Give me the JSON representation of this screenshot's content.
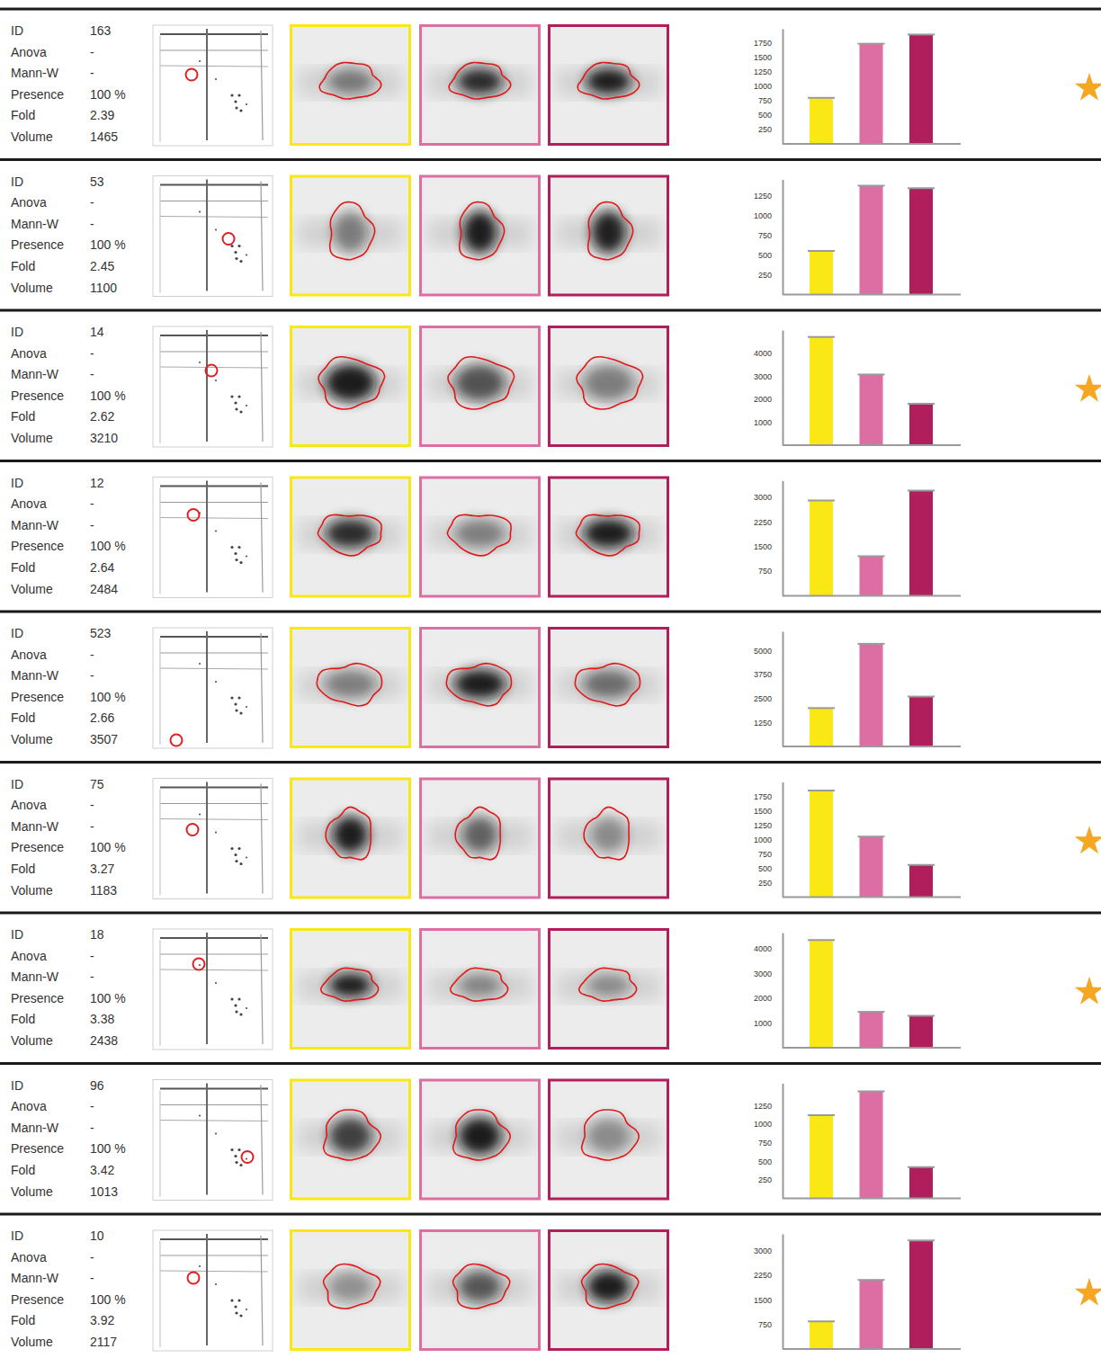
{
  "chart_data": [
    {
      "type": "bar",
      "categories": [
        null,
        null,
        null
      ],
      "values": [
        800,
        1740,
        1900
      ],
      "colors": [
        "#f9e814",
        "#dc6ea4",
        "#b01e5c"
      ],
      "ylim": [
        0,
        2000
      ],
      "yticks": [
        250,
        500,
        750,
        1000,
        1250,
        1500,
        1750
      ],
      "tick_labels": "y"
    },
    {
      "type": "bar",
      "categories": [
        null,
        null,
        null
      ],
      "values": [
        550,
        1370,
        1340
      ],
      "colors": [
        "#f9e814",
        "#dc6ea4",
        "#b01e5c"
      ],
      "ylim": [
        0,
        1450
      ],
      "yticks": [
        250,
        500,
        750,
        1000,
        1250
      ],
      "tick_labels": "y"
    },
    {
      "type": "bar",
      "categories": [
        null,
        null,
        null
      ],
      "values": [
        4700,
        3070,
        1800
      ],
      "colors": [
        "#f9e814",
        "#dc6ea4",
        "#b01e5c"
      ],
      "ylim": [
        0,
        5000
      ],
      "yticks": [
        1000,
        2000,
        3000,
        4000
      ],
      "tick_labels": "y"
    },
    {
      "type": "bar",
      "categories": [
        null,
        null,
        null
      ],
      "values": [
        2900,
        1200,
        3200
      ],
      "colors": [
        "#f9e814",
        "#dc6ea4",
        "#b01e5c"
      ],
      "ylim": [
        0,
        3500
      ],
      "yticks": [
        750,
        1500,
        2250,
        3000
      ],
      "tick_labels": "y"
    },
    {
      "type": "bar",
      "categories": [
        null,
        null,
        null
      ],
      "values": [
        2000,
        5350,
        2600
      ],
      "colors": [
        "#f9e814",
        "#dc6ea4",
        "#b01e5c"
      ],
      "ylim": [
        0,
        6000
      ],
      "yticks": [
        1250,
        2500,
        3750,
        5000
      ],
      "tick_labels": "y"
    },
    {
      "type": "bar",
      "categories": [
        null,
        null,
        null
      ],
      "values": [
        1850,
        1050,
        560
      ],
      "colors": [
        "#f9e814",
        "#dc6ea4",
        "#b01e5c"
      ],
      "ylim": [
        0,
        2000
      ],
      "yticks": [
        250,
        500,
        750,
        1000,
        1250,
        1500,
        1750
      ],
      "tick_labels": "y"
    },
    {
      "type": "bar",
      "categories": [
        null,
        null,
        null
      ],
      "values": [
        4350,
        1450,
        1290
      ],
      "colors": [
        "#f9e814",
        "#dc6ea4",
        "#b01e5c"
      ],
      "ylim": [
        0,
        4650
      ],
      "yticks": [
        1000,
        2000,
        3000,
        4000
      ],
      "tick_labels": "y"
    },
    {
      "type": "bar",
      "categories": [
        null,
        null,
        null
      ],
      "values": [
        1120,
        1440,
        420
      ],
      "colors": [
        "#f9e814",
        "#dc6ea4",
        "#b01e5c"
      ],
      "ylim": [
        0,
        1550
      ],
      "yticks": [
        250,
        500,
        750,
        1000,
        1250
      ],
      "tick_labels": "y"
    },
    {
      "type": "bar",
      "categories": [
        null,
        null,
        null
      ],
      "values": [
        840,
        2100,
        3300
      ],
      "colors": [
        "#f9e814",
        "#dc6ea4",
        "#b01e5c"
      ],
      "ylim": [
        0,
        3500
      ],
      "yticks": [
        750,
        1500,
        2250,
        3000
      ],
      "tick_labels": "y"
    }
  ],
  "spots": [
    {
      "fields": [
        {
          "label": "ID",
          "value": "163"
        },
        {
          "label": "Anova",
          "value": "-"
        },
        {
          "label": "Mann-W",
          "value": "-"
        },
        {
          "label": "Presence",
          "value": "100 %"
        },
        {
          "label": "Fold",
          "value": "2.39"
        },
        {
          "label": "Volume",
          "value": "1465"
        }
      ],
      "starred": true
    },
    {
      "fields": [
        {
          "label": "ID",
          "value": "53"
        },
        {
          "label": "Anova",
          "value": "-"
        },
        {
          "label": "Mann-W",
          "value": "-"
        },
        {
          "label": "Presence",
          "value": "100 %"
        },
        {
          "label": "Fold",
          "value": "2.45"
        },
        {
          "label": "Volume",
          "value": "1100"
        }
      ],
      "starred": false
    },
    {
      "fields": [
        {
          "label": "ID",
          "value": "14"
        },
        {
          "label": "Anova",
          "value": "-"
        },
        {
          "label": "Mann-W",
          "value": "-"
        },
        {
          "label": "Presence",
          "value": "100 %"
        },
        {
          "label": "Fold",
          "value": "2.62"
        },
        {
          "label": "Volume",
          "value": "3210"
        }
      ],
      "starred": true
    },
    {
      "fields": [
        {
          "label": "ID",
          "value": "12"
        },
        {
          "label": "Anova",
          "value": "-"
        },
        {
          "label": "Mann-W",
          "value": "-"
        },
        {
          "label": "Presence",
          "value": "100 %"
        },
        {
          "label": "Fold",
          "value": "2.64"
        },
        {
          "label": "Volume",
          "value": "2484"
        }
      ],
      "starred": false
    },
    {
      "fields": [
        {
          "label": "ID",
          "value": "523"
        },
        {
          "label": "Anova",
          "value": "-"
        },
        {
          "label": "Mann-W",
          "value": "-"
        },
        {
          "label": "Presence",
          "value": "100 %"
        },
        {
          "label": "Fold",
          "value": "2.66"
        },
        {
          "label": "Volume",
          "value": "3507"
        }
      ],
      "starred": false
    },
    {
      "fields": [
        {
          "label": "ID",
          "value": "75"
        },
        {
          "label": "Anova",
          "value": "-"
        },
        {
          "label": "Mann-W",
          "value": "-"
        },
        {
          "label": "Presence",
          "value": "100 %"
        },
        {
          "label": "Fold",
          "value": "3.27"
        },
        {
          "label": "Volume",
          "value": "1183"
        }
      ],
      "starred": true
    },
    {
      "fields": [
        {
          "label": "ID",
          "value": "18"
        },
        {
          "label": "Anova",
          "value": "-"
        },
        {
          "label": "Mann-W",
          "value": "-"
        },
        {
          "label": "Presence",
          "value": "100 %"
        },
        {
          "label": "Fold",
          "value": "3.38"
        },
        {
          "label": "Volume",
          "value": "2438"
        }
      ],
      "starred": true
    },
    {
      "fields": [
        {
          "label": "ID",
          "value": "96"
        },
        {
          "label": "Anova",
          "value": "-"
        },
        {
          "label": "Mann-W",
          "value": "-"
        },
        {
          "label": "Presence",
          "value": "100 %"
        },
        {
          "label": "Fold",
          "value": "3.42"
        },
        {
          "label": "Volume",
          "value": "1013"
        }
      ],
      "starred": false
    },
    {
      "fields": [
        {
          "label": "ID",
          "value": "10"
        },
        {
          "label": "Anova",
          "value": "-"
        },
        {
          "label": "Mann-W",
          "value": "-"
        },
        {
          "label": "Presence",
          "value": "100 %"
        },
        {
          "label": "Fold",
          "value": "3.92"
        },
        {
          "label": "Volume",
          "value": "2117"
        }
      ],
      "starred": true
    }
  ]
}
